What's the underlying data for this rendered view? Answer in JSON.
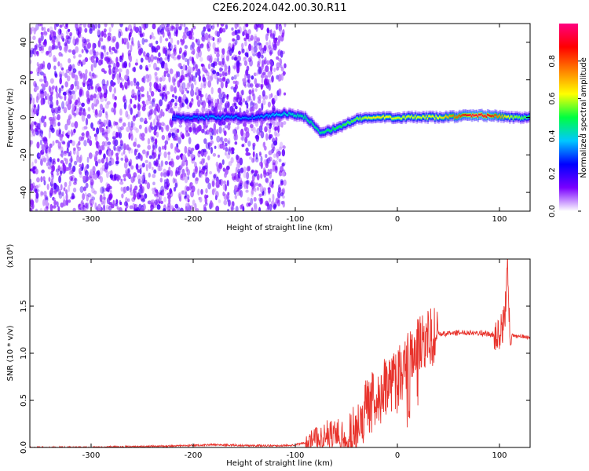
{
  "figure": {
    "title": "C2E6.2024.042.00.30.R11"
  },
  "chart_data": [
    {
      "type": "heatmap",
      "title": "C2E6.2024.042.00.30.R11",
      "xlabel": "Height of straight line (km)",
      "ylabel": "Frequency (Hz)",
      "xlim": [
        -360,
        130
      ],
      "ylim": [
        -50,
        50
      ],
      "xticks": [
        -300,
        -200,
        -100,
        0,
        100
      ],
      "yticks": [
        -40,
        -20,
        0,
        20,
        40
      ],
      "grid": false,
      "colorbar": {
        "label": "Normalized spectral amplitude",
        "range": [
          0,
          1
        ],
        "ticks": [
          "0.0",
          "0.2",
          "0.4",
          "0.6",
          "0.8"
        ],
        "colormap": "rainbow",
        "colors": [
          "#ffffff",
          "#7a00ff",
          "#0000ff",
          "#00c8ff",
          "#00ff40",
          "#ffff00",
          "#ff8000",
          "#ff0000",
          "#ff0080"
        ]
      },
      "noise_region": {
        "x_range": [
          -360,
          -110
        ],
        "frequency_range": [
          -50,
          50
        ],
        "amplitude": 0.15
      },
      "signal_track": [
        {
          "x": -220,
          "freq": 0,
          "amp": 0.3
        },
        {
          "x": -180,
          "freq": 0,
          "amp": 0.35
        },
        {
          "x": -140,
          "freq": 0,
          "amp": 0.32
        },
        {
          "x": -110,
          "freq": 2,
          "amp": 0.4
        },
        {
          "x": -90,
          "freq": 0,
          "amp": 0.45
        },
        {
          "x": -75,
          "freq": -8,
          "amp": 0.45
        },
        {
          "x": -60,
          "freq": -6,
          "amp": 0.5
        },
        {
          "x": -40,
          "freq": -1,
          "amp": 0.55
        },
        {
          "x": -20,
          "freq": 0,
          "amp": 0.65
        },
        {
          "x": 0,
          "freq": 0,
          "amp": 0.6
        },
        {
          "x": 40,
          "freq": 0,
          "amp": 0.62
        },
        {
          "x": 75,
          "freq": 1,
          "amp": 0.95
        },
        {
          "x": 90,
          "freq": 1,
          "amp": 0.9
        },
        {
          "x": 110,
          "freq": 0,
          "amp": 0.6
        },
        {
          "x": 130,
          "freq": 0,
          "amp": 0.5
        }
      ]
    },
    {
      "type": "line",
      "xlabel": "Height of straight line (km)",
      "ylabel": "SNR (10 * v/v)",
      "y_exponent_label": "(x10⁴)",
      "xlim": [
        -360,
        130
      ],
      "ylim": [
        0,
        2
      ],
      "xticks": [
        -300,
        -200,
        -100,
        0,
        100
      ],
      "yticks": [
        "0.0",
        "0.5",
        "1.0",
        "1.5"
      ],
      "grid": false,
      "series": [
        {
          "color": "#e8332c",
          "x": [
            -360,
            -300,
            -250,
            -200,
            -180,
            -150,
            -110,
            -100,
            -90,
            -80,
            -70,
            -60,
            -50,
            -45,
            -40,
            -35,
            -30,
            -20,
            -10,
            0,
            10,
            20,
            30,
            40,
            60,
            80,
            90,
            95,
            100,
            105,
            108,
            110,
            115,
            120,
            130
          ],
          "y": [
            0.0,
            0.0,
            0.01,
            0.02,
            0.03,
            0.02,
            0.02,
            0.03,
            0.05,
            0.1,
            0.12,
            0.15,
            0.08,
            0.15,
            0.2,
            0.3,
            0.45,
            0.55,
            0.65,
            0.75,
            0.9,
            1.05,
            1.15,
            1.2,
            1.22,
            1.22,
            1.2,
            1.2,
            1.18,
            1.35,
            1.95,
            1.2,
            1.18,
            1.18,
            1.17
          ]
        }
      ]
    }
  ]
}
